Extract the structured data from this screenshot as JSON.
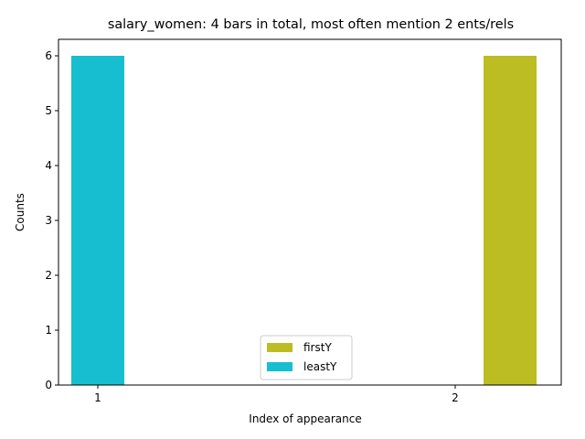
{
  "chart_data": {
    "type": "bar",
    "title": "salary_women: 4 bars in total, most often mention  2 ents/rels",
    "xlabel": "Index of appearance",
    "ylabel": "Counts",
    "categories": [
      "1",
      "2"
    ],
    "ylim": [
      0,
      6.3
    ],
    "yticks": [
      "0",
      "1",
      "2",
      "3",
      "4",
      "5",
      "6"
    ],
    "grid": false,
    "legend_position": "lower center",
    "series": [
      {
        "name": "firstY",
        "color": "#bcbd22",
        "values": [
          0,
          6
        ]
      },
      {
        "name": "leastY",
        "color": "#17becf",
        "values": [
          6,
          0
        ]
      }
    ]
  }
}
